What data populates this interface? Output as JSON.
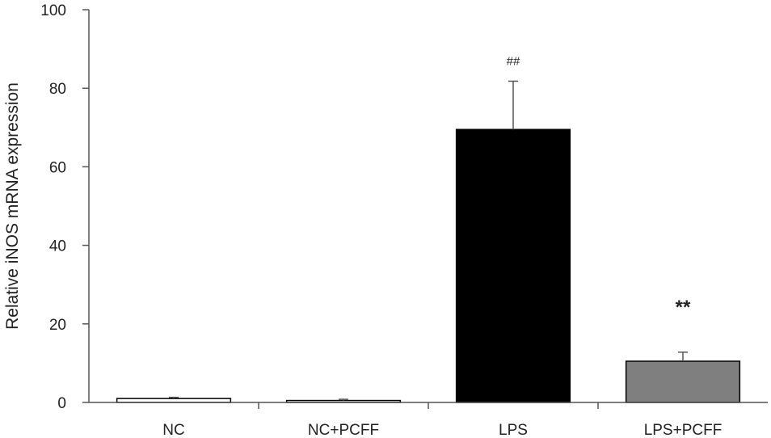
{
  "chart_data": {
    "type": "bar",
    "title": "",
    "xlabel": "",
    "ylabel": "Relative iNOS mRNA expression",
    "ylim": [
      0,
      100
    ],
    "yticks": [
      0,
      20,
      40,
      60,
      80,
      100
    ],
    "grid": false,
    "legend": "none",
    "categories": [
      "NC",
      "NC+PCFF",
      "LPS",
      "LPS+PCFF"
    ],
    "values": [
      1.0,
      0.5,
      69.5,
      10.5
    ],
    "errors": [
      0.3,
      0.3,
      12.3,
      2.3
    ],
    "annotations": [
      "",
      "",
      "##",
      "**"
    ],
    "colors": [
      "#ffffff",
      "#ffffff",
      "#000000",
      "#7f7f7f"
    ]
  }
}
